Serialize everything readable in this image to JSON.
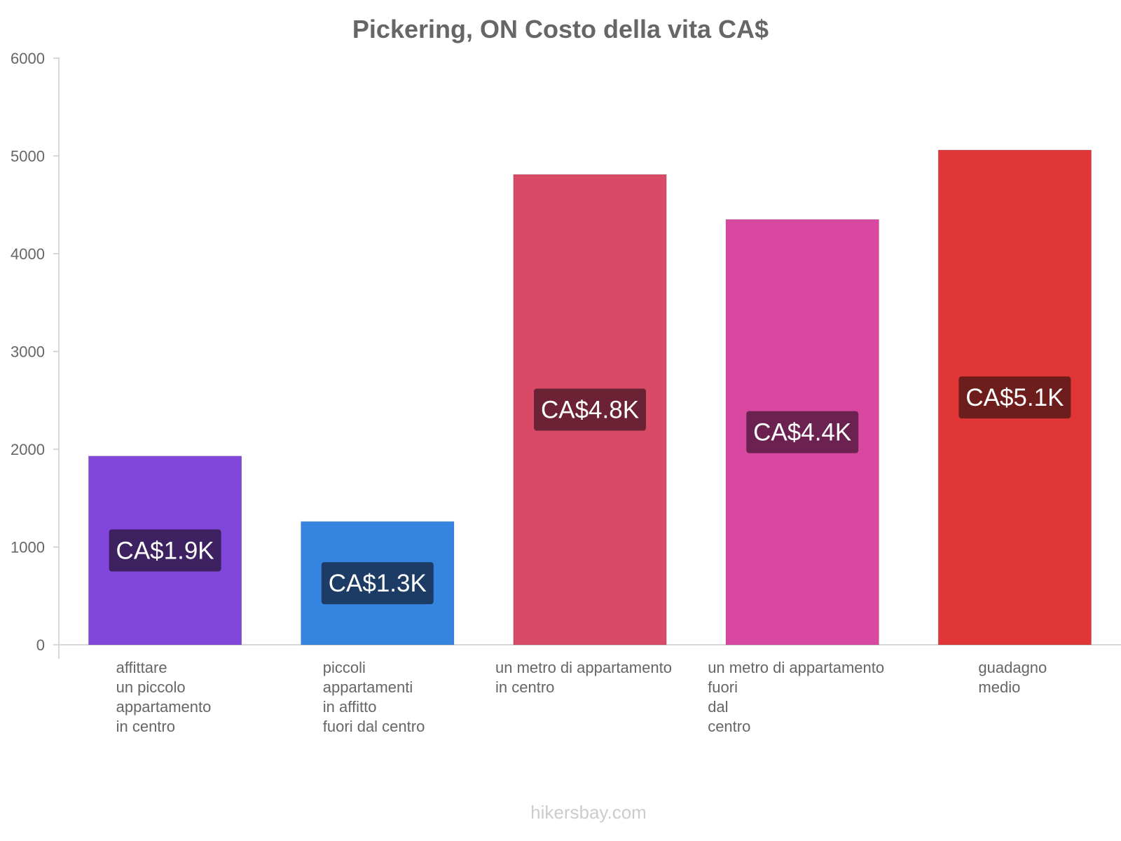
{
  "chart_data": {
    "type": "bar",
    "title": "Pickering, ON Costo della vita CA$",
    "xlabel": "",
    "ylabel": "",
    "ylim": [
      0,
      6000
    ],
    "yticks": [
      0,
      1000,
      2000,
      3000,
      4000,
      5000,
      6000
    ],
    "grid": false,
    "categories": [
      [
        "affittare",
        "un piccolo",
        "appartamento",
        "in centro"
      ],
      [
        "piccoli",
        "appartamenti",
        "in affitto",
        "fuori dal centro"
      ],
      [
        "un metro di appartamento",
        "in centro"
      ],
      [
        "un metro di appartamento",
        "fuori",
        "dal",
        "centro"
      ],
      [
        "guadagno",
        "medio"
      ]
    ],
    "values": [
      1930,
      1260,
      4810,
      4350,
      5060
    ],
    "data_labels": [
      "CA$1.9K",
      "CA$1.3K",
      "CA$4.8K",
      "CA$4.4K",
      "CA$5.1K"
    ],
    "colors": [
      "#8147da",
      "#3584e0",
      "#d84a66",
      "#d948a0",
      "#e03636"
    ],
    "label_bg_colors": [
      "#3e2160",
      "#1c3c66",
      "#6b2235",
      "#6b2250",
      "#6e1d1d"
    ]
  },
  "footer": {
    "credit": "hikersbay.com"
  }
}
